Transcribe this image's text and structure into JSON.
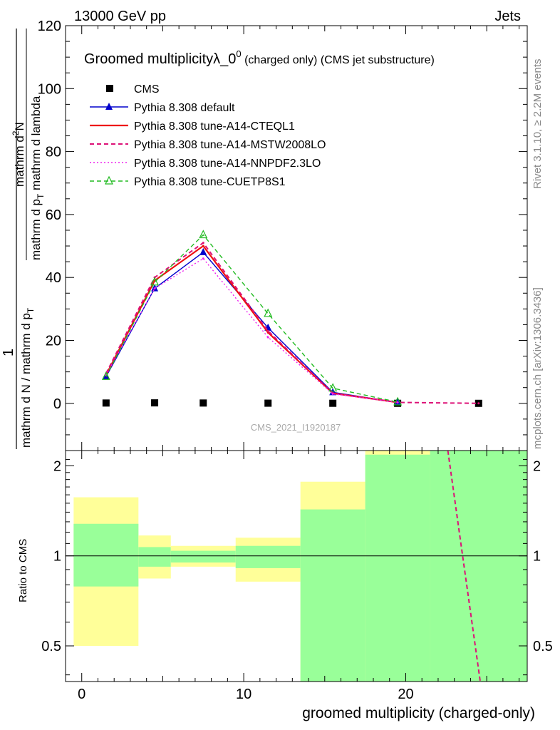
{
  "header": {
    "left": "13000 GeV pp",
    "right": "Jets"
  },
  "side_labels": {
    "rivet": "Rivet 3.1.10, ≥ 2.2M events",
    "mcplots": "mcplots.cern.ch [arXiv:1306.3436]"
  },
  "watermark": "CMS_2021_I1920187",
  "chart_data": [
    {
      "type": "line",
      "title_main": "Groomed multiplicityλ_0",
      "title_sup": "0",
      "title_suffix": " (charged only) (CMS jet substructure)",
      "ylabel_parts": {
        "num": "1",
        "den": "mathrm d N / mathrm d p",
        "den_sub": "T",
        "right_num": "mathrm d",
        "right_sup": "2",
        "right_num2": "N",
        "right_den": "mathrm d p",
        "right_den_sub": "T",
        "right_den2": " mathrm d lambda"
      },
      "ylim": [
        -15,
        120
      ],
      "yticks": [
        0,
        20,
        40,
        60,
        80,
        100,
        120
      ],
      "xlim": [
        -1,
        27.5
      ],
      "legend_position": "top-left",
      "series": [
        {
          "name": "CMS",
          "style": "data",
          "color": "#000000",
          "x": [
            1.5,
            4.5,
            7.5,
            11.5,
            15.5,
            19.5,
            24.5
          ],
          "y": [
            0.1,
            0.15,
            0.1,
            0.05,
            0.02,
            0.01,
            0.0
          ]
        },
        {
          "name": "Pythia 8.308 default",
          "style": "solid-triangle",
          "color": "#0000cc",
          "x": [
            1.5,
            4.5,
            7.5,
            11.5,
            15.5,
            19.5
          ],
          "y": [
            8.5,
            36.5,
            48.0,
            24.0,
            3.5,
            0.3
          ]
        },
        {
          "name": "Pythia 8.308 tune-A14-CTEQL1",
          "style": "solid-thick",
          "color": "#ee1111",
          "x": [
            1.5,
            4.5,
            7.5,
            11.5,
            15.5,
            19.5
          ],
          "y": [
            9.0,
            39.0,
            50.0,
            22.5,
            3.2,
            0.3
          ]
        },
        {
          "name": "Pythia 8.308 tune-A14-MSTW2008LO",
          "style": "dashed",
          "color": "#dd1177",
          "x": [
            1.5,
            4.5,
            7.5,
            11.5,
            15.5,
            19.5,
            24.5
          ],
          "y": [
            9.5,
            40.0,
            51.0,
            23.0,
            3.2,
            0.3,
            0.0
          ]
        },
        {
          "name": "Pythia 8.308 tune-A14-NNPDF2.3LO",
          "style": "dotted",
          "color": "#ee22ee",
          "x": [
            1.5,
            4.5,
            7.5,
            11.5,
            15.5,
            19.5
          ],
          "y": [
            9.0,
            36.5,
            46.0,
            21.0,
            3.0,
            0.3
          ]
        },
        {
          "name": "Pythia 8.308 tune-CUETP8S1",
          "style": "dashed-triangle",
          "color": "#22bb22",
          "x": [
            1.5,
            4.5,
            7.5,
            11.5,
            15.5,
            19.5
          ],
          "y": [
            8.5,
            38.5,
            53.5,
            28.5,
            4.8,
            0.4
          ]
        }
      ]
    },
    {
      "type": "area",
      "ylabel": "Ratio to CMS",
      "xlabel": "groomed multiplicity (charged-only)",
      "ylim": [
        0.38,
        2.25
      ],
      "ytick_labels": [
        "0.5",
        "1",
        "2"
      ],
      "yticks": [
        0.5,
        1,
        2
      ],
      "xticks": [
        0,
        10,
        20
      ],
      "xlim": [
        -1,
        27.5
      ],
      "reference_line": 1,
      "bands": [
        {
          "x0": -0.5,
          "x1": 3.5,
          "y_lo": 0.79,
          "y_hi": 1.28,
          "yel_lo": 0.5,
          "yel_hi": 1.57
        },
        {
          "x0": 3.5,
          "x1": 5.5,
          "y_lo": 0.92,
          "y_hi": 1.07,
          "yel_lo": 0.84,
          "yel_hi": 1.17
        },
        {
          "x0": 5.5,
          "x1": 9.5,
          "y_lo": 0.95,
          "y_hi": 1.04,
          "yel_lo": 0.92,
          "yel_hi": 1.08
        },
        {
          "x0": 9.5,
          "x1": 13.5,
          "y_lo": 0.91,
          "y_hi": 1.08,
          "yel_lo": 0.82,
          "yel_hi": 1.15
        },
        {
          "x0": 13.5,
          "x1": 17.5,
          "y_lo": 0.38,
          "y_hi": 1.43,
          "yel_lo": 0.38,
          "yel_hi": 1.77
        },
        {
          "x0": 17.5,
          "x1": 21.5,
          "y_lo": 0.38,
          "y_hi": 2.18,
          "yel_lo": 0.38,
          "yel_hi": 2.25
        },
        {
          "x0": 21.5,
          "x1": 27.5,
          "y_lo": 0.38,
          "y_hi": 2.25,
          "yel_lo": 0.38,
          "yel_hi": 2.25
        }
      ],
      "ratio_series": [
        {
          "name": "Pythia 8.308 tune-A14-MSTW2008LO",
          "style": "dashed",
          "color": "#dd1177",
          "x": [
            22.6,
            24.6
          ],
          "y": [
            2.25,
            0.38
          ]
        }
      ],
      "colors": {
        "green": "#99ff99",
        "yellow": "#ffff99"
      }
    }
  ]
}
